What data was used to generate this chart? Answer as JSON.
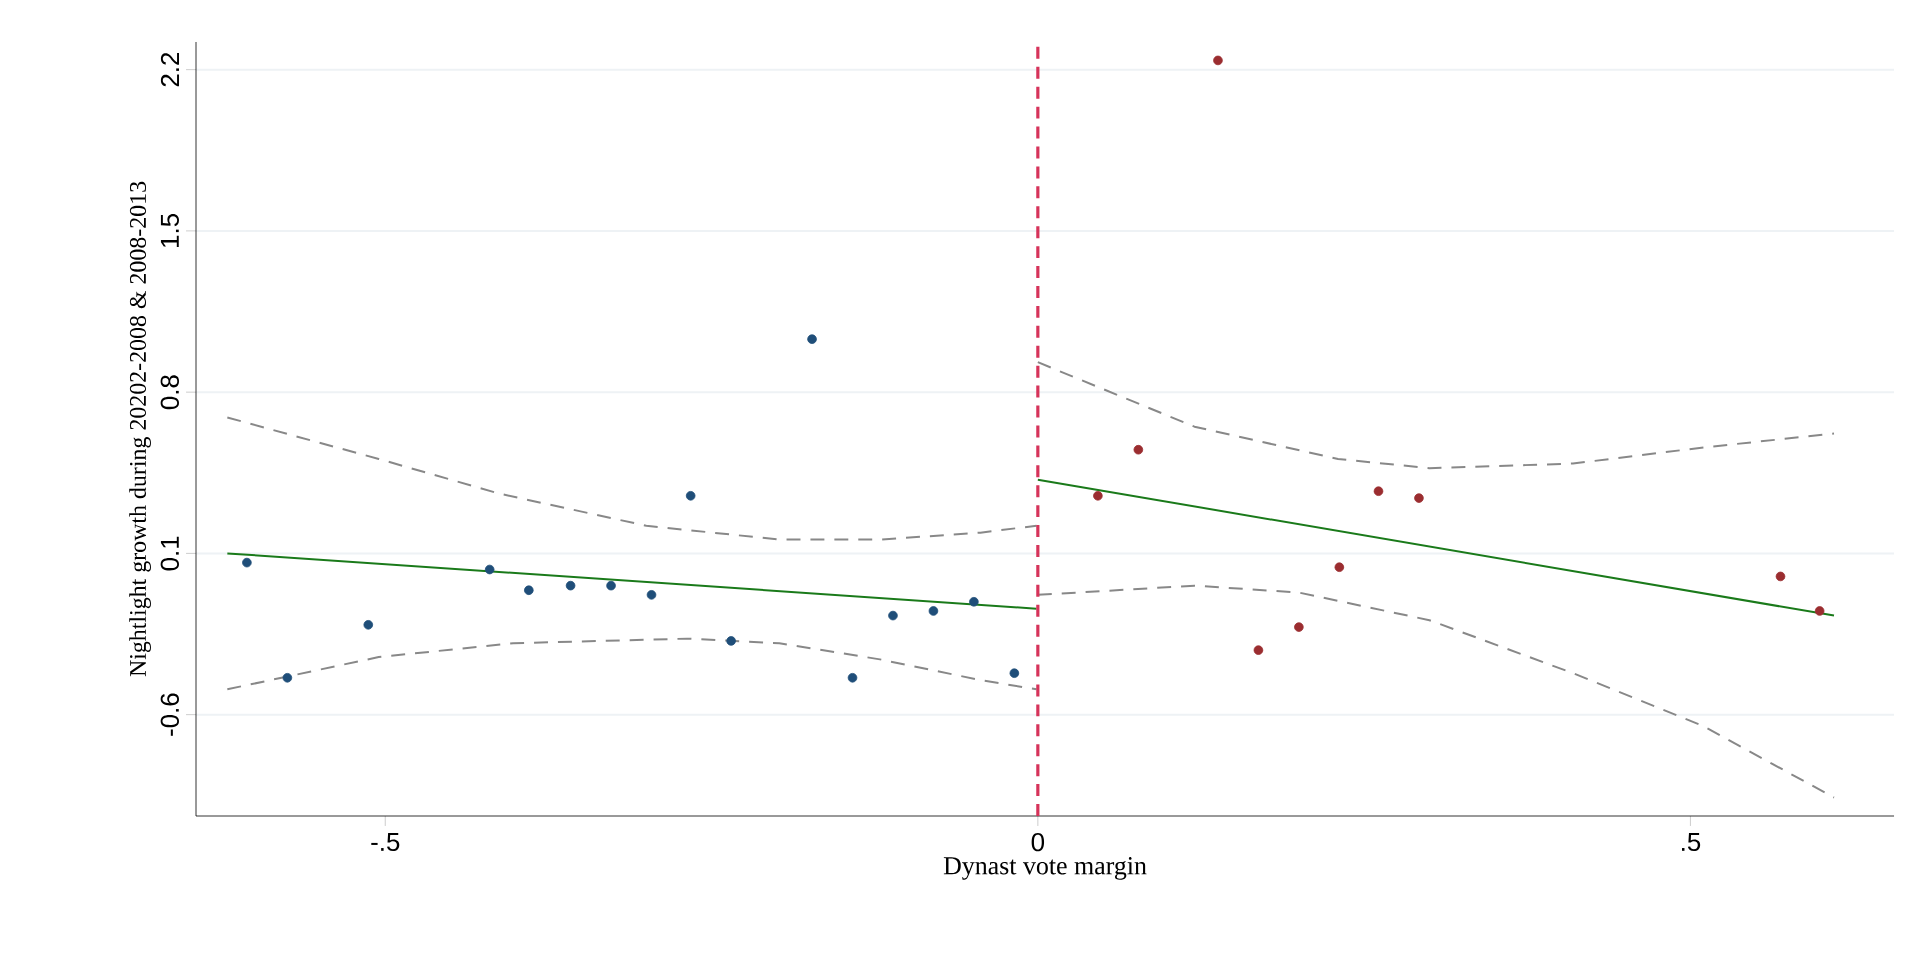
{
  "chart_data": {
    "type": "scatter",
    "xlabel": "Dynast vote margin",
    "ylabel": "Nightlight growth during 20202-2008 & 2008-2013",
    "xlim": [
      -0.645,
      0.656
    ],
    "ylim": [
      -1.04,
      2.32
    ],
    "xticks": [
      {
        "value": -0.5,
        "label": "-.5"
      },
      0,
      {
        "value": 0.5,
        "label": ".5"
      }
    ],
    "yticks": [
      -0.6,
      0.1,
      0.8,
      1.5,
      2.2
    ],
    "grid": "y",
    "marker": "circle",
    "ref_lines": [
      {
        "axis": "x",
        "value": 0,
        "color": "#d6335a",
        "line_style": "dashed"
      }
    ],
    "series": [
      {
        "color": "#1f4e79",
        "x": [
          -0.606,
          -0.575,
          -0.513,
          -0.42,
          -0.39,
          -0.358,
          -0.327,
          -0.296,
          -0.266,
          -0.235,
          -0.173,
          -0.142,
          -0.111,
          -0.08,
          -0.049,
          -0.018
        ],
        "values": [
          0.06,
          -0.44,
          -0.21,
          0.03,
          -0.06,
          -0.04,
          -0.04,
          -0.08,
          0.35,
          -0.28,
          1.03,
          -0.44,
          -0.17,
          -0.15,
          -0.11,
          -0.42
        ]
      },
      {
        "color": "#9b2d30",
        "x": [
          0.046,
          0.077,
          0.138,
          0.169,
          0.2,
          0.231,
          0.261,
          0.292,
          0.569,
          0.599
        ],
        "values": [
          0.35,
          0.55,
          2.24,
          -0.32,
          -0.22,
          0.04,
          0.37,
          0.34,
          0.0,
          -0.15
        ]
      },
      {
        "color": "#1a7a1a",
        "type": "line",
        "line_style": "solid",
        "marker": "none",
        "x": [
          -0.621,
          -0.001
        ],
        "values": [
          0.1,
          -0.14
        ]
      },
      {
        "color": "#1a7a1a",
        "type": "line",
        "line_style": "solid",
        "marker": "none",
        "x": [
          0.0,
          0.61
        ],
        "values": [
          0.42,
          -0.17
        ]
      },
      {
        "color": "#888888",
        "type": "line",
        "line_style": "dashed",
        "marker": "none",
        "x": [
          -0.621,
          -0.505,
          -0.413,
          -0.3,
          -0.198,
          -0.121,
          -0.044,
          -0.001
        ],
        "values": [
          0.69,
          0.51,
          0.36,
          0.22,
          0.16,
          0.16,
          0.19,
          0.22
        ]
      },
      {
        "color": "#888888",
        "type": "line",
        "line_style": "dashed",
        "marker": "none",
        "x": [
          -0.621,
          -0.505,
          -0.402,
          -0.269,
          -0.198,
          -0.121,
          -0.044,
          -0.001
        ],
        "values": [
          -0.49,
          -0.35,
          -0.29,
          -0.27,
          -0.29,
          -0.36,
          -0.45,
          -0.49
        ]
      },
      {
        "color": "#888888",
        "type": "line",
        "line_style": "dashed",
        "marker": "none",
        "x": [
          0.0,
          0.12,
          0.23,
          0.3,
          0.41,
          0.51,
          0.61
        ],
        "values": [
          0.93,
          0.65,
          0.51,
          0.47,
          0.49,
          0.56,
          0.62
        ]
      },
      {
        "color": "#888888",
        "type": "line",
        "line_style": "dashed",
        "marker": "none",
        "x": [
          0.0,
          0.12,
          0.2,
          0.3,
          0.41,
          0.51,
          0.61
        ],
        "values": [
          -0.08,
          -0.04,
          -0.07,
          -0.19,
          -0.42,
          -0.65,
          -0.96
        ]
      }
    ]
  }
}
